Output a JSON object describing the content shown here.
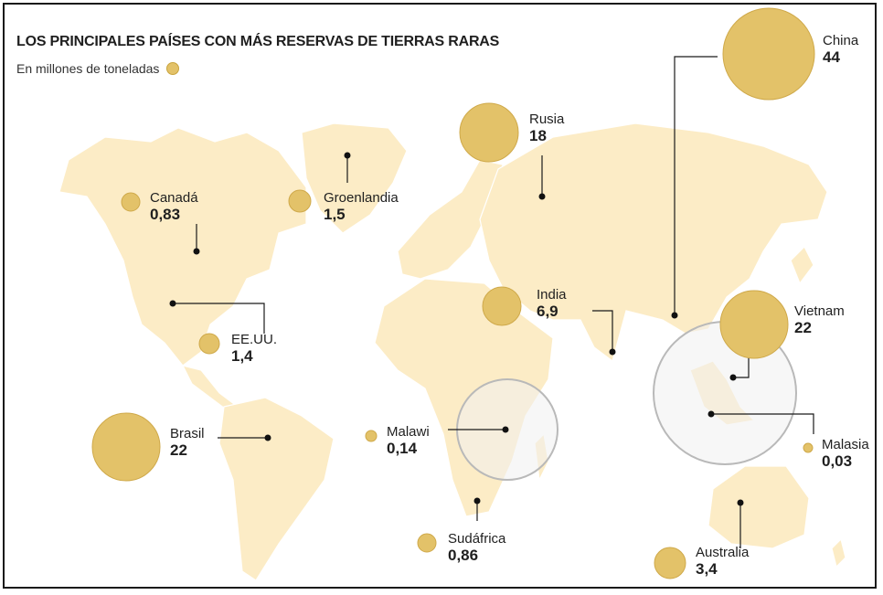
{
  "title": "LOS PRINCIPALES PAÍSES CON MÁS RESERVAS DE TIERRAS RARAS",
  "subtitle": "En millones de toneladas",
  "colors": {
    "land": "#fcecc6",
    "land_border": "#ffffff",
    "bubble": "#e3c269",
    "bubble_stroke": "#cfa94a",
    "leader": "#1a1a1a",
    "inset_stroke": "#b9b9b9",
    "inset_fill": "#f1f1f1"
  },
  "countries": [
    {
      "key": "china",
      "name": "China",
      "value": "44",
      "reserve": 44
    },
    {
      "key": "rusia",
      "name": "Rusia",
      "value": "18",
      "reserve": 18
    },
    {
      "key": "canada",
      "name": "Canadá",
      "value": "0,83",
      "reserve": 0.83
    },
    {
      "key": "groenlandia",
      "name": "Groenlandia",
      "value": "1,5",
      "reserve": 1.5
    },
    {
      "key": "india",
      "name": "India",
      "value": "6,9",
      "reserve": 6.9
    },
    {
      "key": "vietnam",
      "name": "Vietnam",
      "value": "22",
      "reserve": 22
    },
    {
      "key": "eeuu",
      "name": "EE.UU.",
      "value": "1,4",
      "reserve": 1.4
    },
    {
      "key": "brasil",
      "name": "Brasil",
      "value": "22",
      "reserve": 22
    },
    {
      "key": "malawi",
      "name": "Malawi",
      "value": "0,14",
      "reserve": 0.14
    },
    {
      "key": "malasia",
      "name": "Malasia",
      "value": "0,03",
      "reserve": 0.03
    },
    {
      "key": "sudafrica",
      "name": "Sudáfrica",
      "value": "0,86",
      "reserve": 0.86
    },
    {
      "key": "australia",
      "name": "Australia",
      "value": "3,4",
      "reserve": 3.4
    }
  ]
}
